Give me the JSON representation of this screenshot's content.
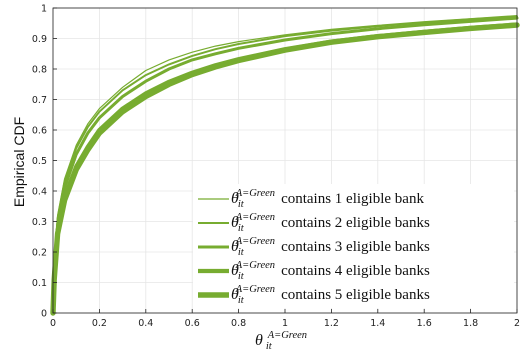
{
  "chart_data": {
    "type": "line",
    "title": "",
    "xlabel": {
      "base": "θ",
      "sub": "it",
      "sup": "A=Green"
    },
    "ylabel": "Empirical CDF",
    "xlim": [
      0,
      2
    ],
    "ylim": [
      0,
      1
    ],
    "x_ticks": [
      "0",
      "0.2",
      "0.4",
      "0.6",
      "0.8",
      "1",
      "1.2",
      "1.4",
      "1.6",
      "1.8",
      "2"
    ],
    "y_ticks": [
      "0",
      "0.1",
      "0.2",
      "0.3",
      "0.4",
      "0.5",
      "0.6",
      "0.7",
      "0.8",
      "0.9",
      "1"
    ],
    "grid": true,
    "legend_position": "bottom-right",
    "line_color": "#77AC30",
    "series": [
      {
        "name": "contains 1 eligible bank",
        "legend_label": {
          "base": "θ",
          "sub": "it",
          "sup": "A=Green",
          "text": "contains 1 eligible bank"
        },
        "x": [
          0,
          0.005,
          0.02,
          0.05,
          0.1,
          0.15,
          0.2,
          0.3,
          0.4,
          0.5,
          0.6,
          0.7,
          0.8,
          1.0,
          1.2,
          1.4,
          1.6,
          1.8,
          2.0
        ],
        "y": [
          0,
          0.15,
          0.32,
          0.44,
          0.55,
          0.62,
          0.67,
          0.74,
          0.795,
          0.83,
          0.855,
          0.875,
          0.89,
          0.912,
          0.93,
          0.943,
          0.955,
          0.965,
          0.975
        ]
      },
      {
        "name": "contains 2 eligible banks",
        "legend_label": {
          "base": "θ",
          "sub": "it",
          "sup": "A=Green",
          "text": "contains 2 eligible banks"
        },
        "x": [
          0,
          0.005,
          0.02,
          0.05,
          0.1,
          0.15,
          0.2,
          0.3,
          0.4,
          0.5,
          0.6,
          0.7,
          0.8,
          1.0,
          1.2,
          1.4,
          1.6,
          1.8,
          2.0
        ],
        "y": [
          0,
          0.14,
          0.31,
          0.43,
          0.54,
          0.61,
          0.66,
          0.73,
          0.78,
          0.815,
          0.843,
          0.865,
          0.882,
          0.908,
          0.926,
          0.94,
          0.952,
          0.963,
          0.972
        ]
      },
      {
        "name": "contains 3 eligible banks",
        "legend_label": {
          "base": "θ",
          "sub": "it",
          "sup": "A=Green",
          "text": "contains 3 eligible banks"
        },
        "x": [
          0,
          0.005,
          0.02,
          0.05,
          0.1,
          0.15,
          0.2,
          0.3,
          0.4,
          0.5,
          0.6,
          0.7,
          0.8,
          1.0,
          1.2,
          1.4,
          1.6,
          1.8,
          2.0
        ],
        "y": [
          0,
          0.13,
          0.29,
          0.41,
          0.52,
          0.59,
          0.64,
          0.71,
          0.76,
          0.8,
          0.83,
          0.85,
          0.868,
          0.895,
          0.916,
          0.932,
          0.945,
          0.956,
          0.967
        ]
      },
      {
        "name": "contains 4 eligible banks",
        "legend_label": {
          "base": "θ",
          "sub": "it",
          "sup": "A=Green",
          "text": "contains 4 eligible banks"
        },
        "x": [
          0,
          0.005,
          0.02,
          0.05,
          0.1,
          0.15,
          0.2,
          0.3,
          0.4,
          0.5,
          0.6,
          0.7,
          0.8,
          1.0,
          1.2,
          1.4,
          1.6,
          1.8,
          2.0
        ],
        "y": [
          0,
          0.12,
          0.27,
          0.38,
          0.48,
          0.545,
          0.6,
          0.67,
          0.72,
          0.758,
          0.788,
          0.812,
          0.832,
          0.865,
          0.89,
          0.908,
          0.922,
          0.935,
          0.946
        ]
      },
      {
        "name": "contains 5 eligible banks",
        "legend_label": {
          "base": "θ",
          "sub": "it",
          "sup": "A=Green",
          "text": "contains 5 eligible banks"
        },
        "x": [
          0,
          0.005,
          0.02,
          0.05,
          0.1,
          0.15,
          0.2,
          0.3,
          0.4,
          0.5,
          0.6,
          0.7,
          0.8,
          1.0,
          1.2,
          1.4,
          1.6,
          1.8,
          2.0
        ],
        "y": [
          0,
          0.11,
          0.26,
          0.37,
          0.47,
          0.535,
          0.59,
          0.66,
          0.71,
          0.75,
          0.782,
          0.807,
          0.828,
          0.862,
          0.888,
          0.906,
          0.92,
          0.933,
          0.944
        ]
      }
    ]
  }
}
